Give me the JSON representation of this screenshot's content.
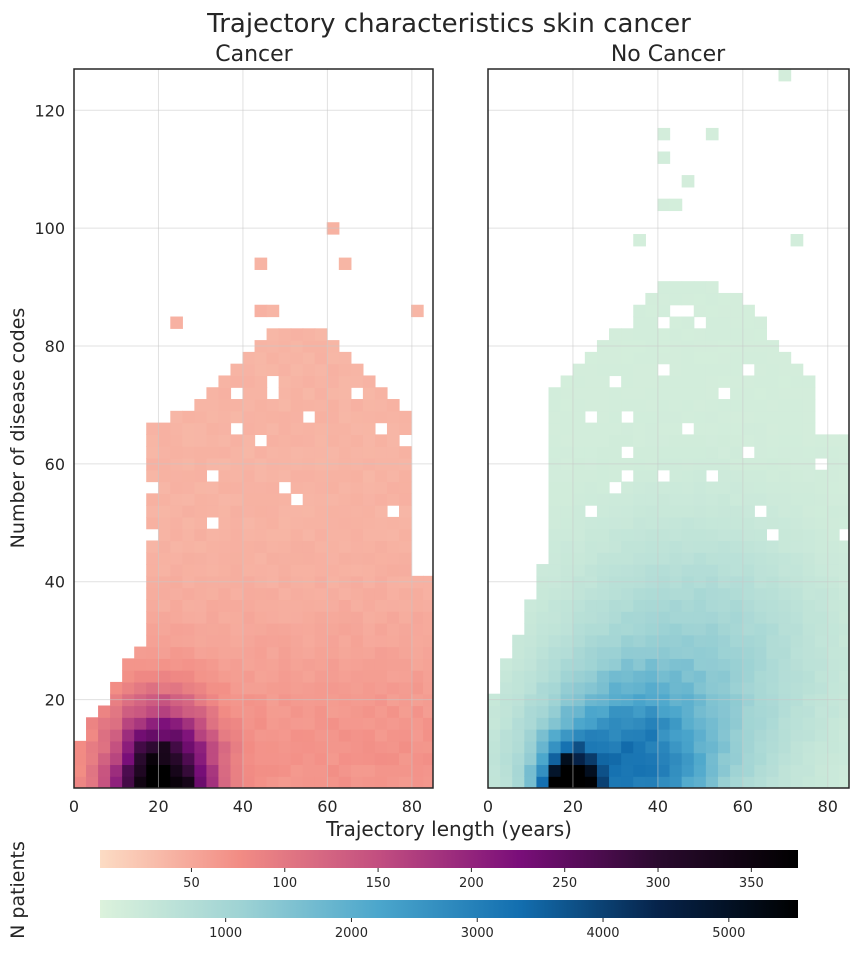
{
  "figure": {
    "title": "Trajectory characteristics skin cancer",
    "xlabel": "Trajectory length (years)",
    "ylabel": "Number of disease codes",
    "colorbar_label": "N patients"
  },
  "chart_data": [
    {
      "type": "heatmap",
      "title": "Cancer",
      "xlabel": "Trajectory length (years)",
      "ylabel": "Number of disease codes",
      "xlim": [
        0,
        85
      ],
      "ylim": [
        5,
        127
      ],
      "xticks": [
        0,
        20,
        40,
        60,
        80
      ],
      "yticks": [
        20,
        40,
        60,
        80,
        100,
        120
      ],
      "grid": true,
      "bin": {
        "x": 2.85,
        "y": 2.0
      },
      "colormap": "RdPu",
      "color_stops": [
        "#fcdcc4",
        "#f28c84",
        "#c24e80",
        "#7a0e7a",
        "#2a0a2e",
        "#000000"
      ],
      "value_range": [
        1,
        375
      ],
      "colorbar_ticks": [
        50,
        100,
        150,
        200,
        250,
        300,
        350
      ]
    },
    {
      "type": "heatmap",
      "title": "No Cancer",
      "xlabel": "Trajectory length (years)",
      "ylabel": "",
      "xlim": [
        0,
        85
      ],
      "ylim": [
        5,
        127
      ],
      "xticks": [
        0,
        20,
        40,
        60,
        80
      ],
      "yticks": [],
      "grid": true,
      "bin": {
        "x": 2.85,
        "y": 2.0
      },
      "colormap": "GnBu",
      "color_stops": [
        "#dcf2dc",
        "#9fd3d4",
        "#4ba6cc",
        "#136fb0",
        "#06234a",
        "#000000"
      ],
      "value_range": [
        1,
        5550
      ],
      "colorbar_ticks": [
        1000,
        2000,
        3000,
        4000,
        5000
      ]
    }
  ]
}
